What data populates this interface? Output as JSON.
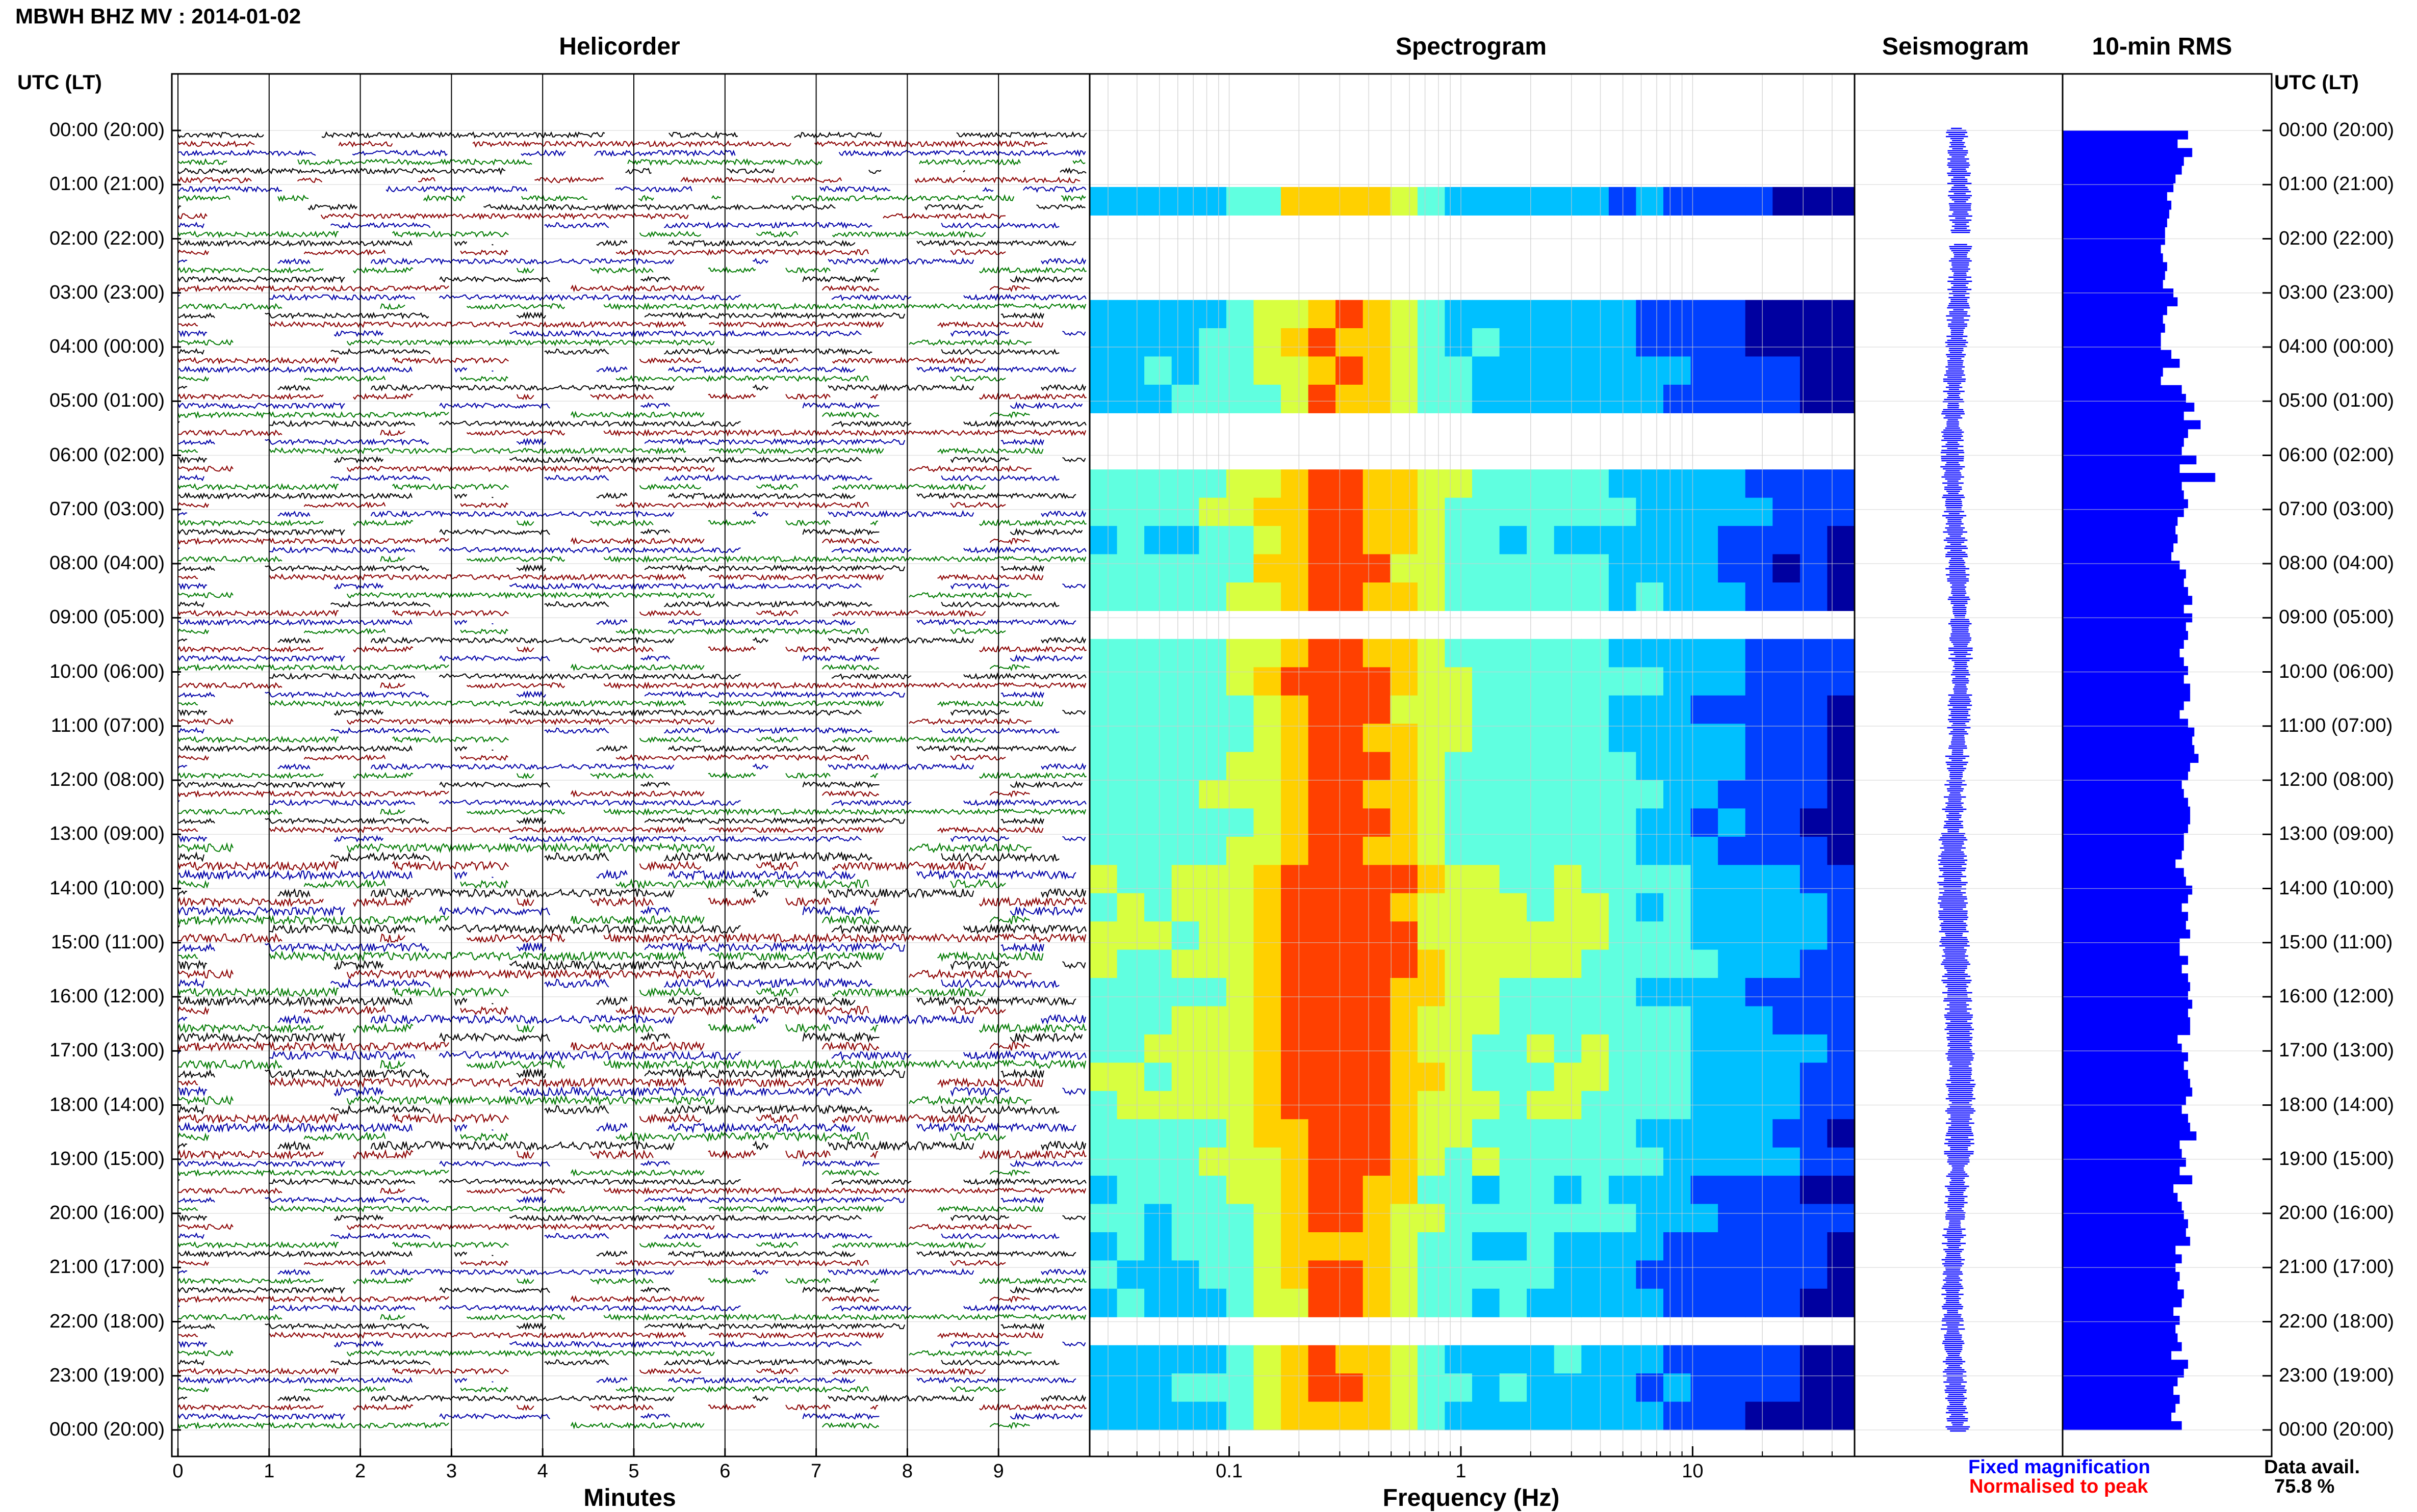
{
  "header": {
    "title": "MBWH BHZ MV : 2014-01-02"
  },
  "panels": {
    "helicorder": {
      "title": "Helicorder",
      "xlabel": "Minutes"
    },
    "spectrogram": {
      "title": "Spectrogram",
      "xlabel": "Frequency (Hz)"
    },
    "seismogram": {
      "title": "Seismogram"
    },
    "rms": {
      "title": "10-min RMS"
    }
  },
  "axis": {
    "left_label": "UTC (LT)",
    "right_label": "UTC (LT)",
    "hour_ticks": [
      "00:00 (20:00)",
      "01:00 (21:00)",
      "02:00 (22:00)",
      "03:00 (23:00)",
      "04:00 (00:00)",
      "05:00 (01:00)",
      "06:00 (02:00)",
      "07:00 (03:00)",
      "08:00 (04:00)",
      "09:00 (05:00)",
      "10:00 (06:00)",
      "11:00 (07:00)",
      "12:00 (08:00)",
      "13:00 (09:00)",
      "14:00 (10:00)",
      "15:00 (11:00)",
      "16:00 (12:00)",
      "17:00 (13:00)",
      "18:00 (14:00)",
      "19:00 (15:00)",
      "20:00 (16:00)",
      "21:00 (17:00)",
      "22:00 (18:00)",
      "23:00 (19:00)",
      "00:00 (20:00)"
    ]
  },
  "footer": {
    "fixed": "Fixed magnification",
    "normalised": "Normalised to peak",
    "avail_label": "Data avail.",
    "avail_value": "75.8 %"
  },
  "colors": {
    "trace_cycle": [
      "#000000",
      "#8b0000",
      "#0000a8",
      "#007a00"
    ],
    "seismogram": "#0000ff",
    "rms": "#0000ff",
    "fixed_text": "#0000ff",
    "normalised_text": "#ff0000",
    "spectrogram_map": [
      "#0000a0",
      "#0040ff",
      "#00c0ff",
      "#60ffe0",
      "#d8ff40",
      "#ffd000",
      "#ff4000"
    ]
  },
  "chart_data": [
    {
      "type": "heatmap",
      "title": "Helicorder",
      "xlabel": "Minutes",
      "x_ticks": [
        0,
        1,
        2,
        3,
        4,
        5,
        6,
        7,
        8,
        9
      ],
      "xlim": [
        0,
        10
      ],
      "rows_per_hour": 6,
      "y_ticks": "hour_ticks"
    },
    {
      "type": "heatmap",
      "title": "Spectrogram",
      "xlabel": "Frequency (Hz)",
      "x_scale": "log",
      "xlim": [
        0.025,
        50
      ],
      "x_tick_labels": [
        "0.1",
        "1",
        "10"
      ],
      "x_tick_values": [
        0.1,
        1,
        10
      ],
      "gaps_hours": [
        [
          0.15,
          0.85
        ],
        [
          1.5,
          3.0
        ],
        [
          5.4,
          6.1
        ],
        [
          8.8,
          9.2
        ],
        [
          22.0,
          22.6
        ]
      ],
      "intensity_by_hour": [
        0.2,
        0.15,
        0.1,
        0.15,
        0.25,
        0.2,
        0.35,
        0.5,
        0.4,
        0.45,
        0.5,
        0.45,
        0.5,
        0.45,
        0.65,
        0.7,
        0.6,
        0.7,
        0.65,
        0.55,
        0.4,
        0.3,
        0.25,
        0.25,
        0.2
      ]
    },
    {
      "type": "bar",
      "title": "10-min RMS",
      "orientation": "horizontal",
      "values": [
        0.6,
        0.55,
        0.62,
        0.58,
        0.57,
        0.54,
        0.53,
        0.5,
        0.52,
        0.51,
        0.5,
        0.49,
        0.49,
        0.47,
        0.48,
        0.5,
        0.49,
        0.48,
        0.53,
        0.55,
        0.5,
        0.48,
        0.49,
        0.47,
        0.47,
        0.52,
        0.56,
        0.48,
        0.47,
        0.57,
        0.59,
        0.63,
        0.58,
        0.66,
        0.6,
        0.58,
        0.57,
        0.64,
        0.56,
        0.73,
        0.57,
        0.58,
        0.6,
        0.58,
        0.55,
        0.54,
        0.55,
        0.53,
        0.52,
        0.56,
        0.59,
        0.58,
        0.6,
        0.62,
        0.58,
        0.62,
        0.59,
        0.6,
        0.58,
        0.56,
        0.58,
        0.6,
        0.58,
        0.61,
        0.61,
        0.58,
        0.56,
        0.6,
        0.63,
        0.62,
        0.63,
        0.65,
        0.61,
        0.6,
        0.57,
        0.58,
        0.6,
        0.61,
        0.61,
        0.6,
        0.58,
        0.58,
        0.57,
        0.54,
        0.58,
        0.59,
        0.62,
        0.6,
        0.57,
        0.6,
        0.59,
        0.61,
        0.56,
        0.56,
        0.6,
        0.57,
        0.6,
        0.61,
        0.6,
        0.62,
        0.6,
        0.61,
        0.61,
        0.55,
        0.57,
        0.6,
        0.58,
        0.6,
        0.61,
        0.62,
        0.59,
        0.57,
        0.6,
        0.61,
        0.64,
        0.56,
        0.57,
        0.59,
        0.56,
        0.62,
        0.53,
        0.55,
        0.57,
        0.58,
        0.6,
        0.59,
        0.61,
        0.54,
        0.57,
        0.54,
        0.56,
        0.55,
        0.58,
        0.57,
        0.53,
        0.56,
        0.54,
        0.55,
        0.57,
        0.52,
        0.6,
        0.58,
        0.55,
        0.53,
        0.56,
        0.54,
        0.52,
        0.57
      ]
    },
    {
      "type": "line",
      "title": "Seismogram",
      "scale": "Fixed magnification"
    }
  ]
}
